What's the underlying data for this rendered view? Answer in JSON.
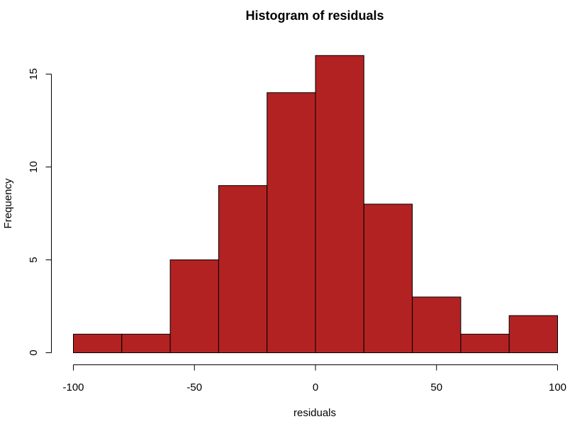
{
  "chart_data": {
    "type": "bar",
    "title": "Histogram of residuals",
    "xlabel": "residuals",
    "ylabel": "Frequency",
    "bin_edges": [
      -100,
      -80,
      -60,
      -40,
      -20,
      0,
      20,
      40,
      60,
      80,
      100
    ],
    "values": [
      1,
      1,
      5,
      9,
      14,
      16,
      8,
      3,
      1,
      2
    ],
    "xlim": [
      -100,
      100
    ],
    "ylim": [
      0,
      16
    ],
    "x_ticks": [
      -100,
      -50,
      0,
      50,
      100
    ],
    "x_tick_labels": [
      "-100",
      "-50",
      "0",
      "50",
      "100"
    ],
    "y_ticks": [
      0,
      5,
      10,
      15
    ],
    "y_tick_labels": [
      "0",
      "5",
      "10",
      "15"
    ],
    "bar_color": "#b22222",
    "grid": false
  }
}
